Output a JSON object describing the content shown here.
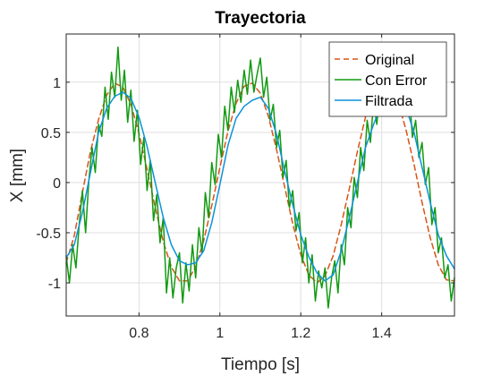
{
  "chart_data": {
    "type": "line",
    "title": "Trayectoria",
    "xlabel": "Tiempo [s]",
    "ylabel": "X [mm]",
    "xlim": [
      0.62,
      1.58
    ],
    "ylim": [
      -1.33,
      1.48
    ],
    "xticks": [
      0.8,
      1,
      1.2,
      1.4
    ],
    "xtick_labels": [
      "0.8",
      "1",
      "1.2",
      "1.4"
    ],
    "yticks": [
      -1,
      -0.5,
      0,
      0.5,
      1
    ],
    "ytick_labels": [
      "-1",
      "-0.5",
      "0",
      "0.5",
      "1"
    ],
    "grid": true,
    "legend_position": "top-right",
    "series": [
      {
        "name": "Original",
        "color": "#D95319",
        "style": "dashed",
        "x": [
          0.62,
          0.64,
          0.66,
          0.68,
          0.7,
          0.72,
          0.74,
          0.76,
          0.78,
          0.8,
          0.82,
          0.84,
          0.86,
          0.88,
          0.9,
          0.92,
          0.94,
          0.96,
          0.98,
          1.0,
          1.02,
          1.04,
          1.06,
          1.08,
          1.1,
          1.12,
          1.14,
          1.16,
          1.18,
          1.2,
          1.22,
          1.24,
          1.26,
          1.28,
          1.3,
          1.32,
          1.34,
          1.36,
          1.38,
          1.4,
          1.42,
          1.44,
          1.46,
          1.48,
          1.5,
          1.52,
          1.54,
          1.56,
          1.58
        ],
        "y": [
          -0.8,
          -0.53,
          -0.1,
          0.31,
          0.63,
          0.87,
          0.99,
          0.95,
          0.78,
          0.49,
          0.13,
          -0.25,
          -0.59,
          -0.84,
          -0.98,
          -0.98,
          -0.84,
          -0.58,
          -0.23,
          0.15,
          0.51,
          0.79,
          0.96,
          0.99,
          0.89,
          0.66,
          0.33,
          -0.04,
          -0.41,
          -0.72,
          -0.92,
          -1.0,
          -0.93,
          -0.73,
          -0.42,
          -0.06,
          0.31,
          0.65,
          0.88,
          0.99,
          0.97,
          0.81,
          0.53,
          0.18,
          -0.2,
          -0.55,
          -0.82,
          -0.97,
          -0.98
        ]
      },
      {
        "name": "Con Error",
        "color": "#119A11",
        "style": "solid",
        "x": [
          0.62,
          0.628,
          0.636,
          0.644,
          0.652,
          0.66,
          0.668,
          0.676,
          0.684,
          0.692,
          0.7,
          0.708,
          0.716,
          0.724,
          0.732,
          0.74,
          0.748,
          0.756,
          0.764,
          0.772,
          0.78,
          0.788,
          0.796,
          0.804,
          0.812,
          0.82,
          0.828,
          0.836,
          0.844,
          0.852,
          0.86,
          0.868,
          0.876,
          0.884,
          0.892,
          0.9,
          0.908,
          0.916,
          0.924,
          0.932,
          0.94,
          0.948,
          0.956,
          0.964,
          0.972,
          0.98,
          0.988,
          0.996,
          1.004,
          1.012,
          1.02,
          1.028,
          1.036,
          1.044,
          1.052,
          1.06,
          1.068,
          1.076,
          1.084,
          1.092,
          1.1,
          1.108,
          1.116,
          1.124,
          1.132,
          1.14,
          1.148,
          1.156,
          1.164,
          1.172,
          1.18,
          1.188,
          1.196,
          1.204,
          1.212,
          1.22,
          1.228,
          1.236,
          1.244,
          1.252,
          1.26,
          1.268,
          1.276,
          1.284,
          1.292,
          1.3,
          1.308,
          1.316,
          1.324,
          1.332,
          1.34,
          1.348,
          1.356,
          1.364,
          1.372,
          1.38,
          1.388,
          1.396,
          1.404,
          1.412,
          1.42,
          1.428,
          1.436,
          1.444,
          1.452,
          1.46,
          1.468,
          1.476,
          1.484,
          1.492,
          1.5,
          1.508,
          1.516,
          1.524,
          1.532,
          1.54,
          1.548,
          1.556,
          1.564,
          1.572,
          1.58
        ],
        "y": [
          -0.73,
          -1.0,
          -0.62,
          -0.85,
          -0.42,
          -0.08,
          -0.5,
          0.02,
          0.35,
          0.1,
          0.58,
          0.46,
          0.95,
          0.63,
          1.1,
          0.85,
          1.35,
          0.82,
          1.12,
          0.6,
          0.92,
          0.41,
          0.72,
          0.18,
          0.45,
          -0.08,
          0.22,
          -0.38,
          -0.12,
          -0.6,
          -0.35,
          -1.1,
          -0.75,
          -1.15,
          -0.85,
          -0.7,
          -1.2,
          -0.8,
          -1.08,
          -0.62,
          -0.95,
          -0.45,
          -0.7,
          -0.1,
          -0.35,
          0.2,
          -0.02,
          0.48,
          0.25,
          0.76,
          0.52,
          0.95,
          0.7,
          1.02,
          0.8,
          1.12,
          0.88,
          1.22,
          0.9,
          1.08,
          1.24,
          0.85,
          1.05,
          0.62,
          0.78,
          0.35,
          0.52,
          0.05,
          0.22,
          -0.25,
          -0.08,
          -0.48,
          -0.3,
          -0.8,
          -0.55,
          -1.0,
          -0.72,
          -1.18,
          -0.88,
          -1.05,
          -0.85,
          -1.25,
          -0.95,
          -0.78,
          -1.1,
          -0.62,
          -0.82,
          -0.25,
          -0.45,
          0.05,
          -0.15,
          0.35,
          0.12,
          0.62,
          0.4,
          0.8,
          0.58,
          0.95,
          0.72,
          1.05,
          0.78,
          1.16,
          0.85,
          1.0,
          0.82,
          0.7,
          0.9,
          0.45,
          0.62,
          0.25,
          0.4,
          -0.02,
          0.15,
          -0.42,
          -0.25,
          -0.7,
          -0.55,
          -0.95,
          -0.82,
          -1.18,
          -0.95
        ]
      },
      {
        "name": "Filtrada",
        "color": "#0C93D9",
        "style": "solid",
        "x": [
          0.62,
          0.64,
          0.66,
          0.68,
          0.7,
          0.72,
          0.74,
          0.76,
          0.78,
          0.8,
          0.82,
          0.84,
          0.86,
          0.88,
          0.9,
          0.92,
          0.94,
          0.96,
          0.98,
          1.0,
          1.02,
          1.04,
          1.06,
          1.08,
          1.1,
          1.12,
          1.14,
          1.16,
          1.18,
          1.2,
          1.22,
          1.24,
          1.26,
          1.28,
          1.3,
          1.32,
          1.34,
          1.36,
          1.38,
          1.4,
          1.42,
          1.44,
          1.46,
          1.48,
          1.5,
          1.52,
          1.54,
          1.56,
          1.58
        ],
        "y": [
          -0.75,
          -0.62,
          -0.3,
          0.1,
          0.5,
          0.74,
          0.86,
          0.9,
          0.84,
          0.65,
          0.36,
          0.0,
          -0.35,
          -0.62,
          -0.78,
          -0.82,
          -0.8,
          -0.68,
          -0.4,
          -0.02,
          0.37,
          0.64,
          0.76,
          0.82,
          0.85,
          0.74,
          0.48,
          0.12,
          -0.22,
          -0.52,
          -0.74,
          -0.9,
          -0.98,
          -0.92,
          -0.68,
          -0.35,
          0.0,
          0.35,
          0.58,
          0.78,
          0.88,
          0.87,
          0.75,
          0.5,
          0.15,
          -0.2,
          -0.52,
          -0.73,
          -0.86
        ]
      }
    ]
  }
}
